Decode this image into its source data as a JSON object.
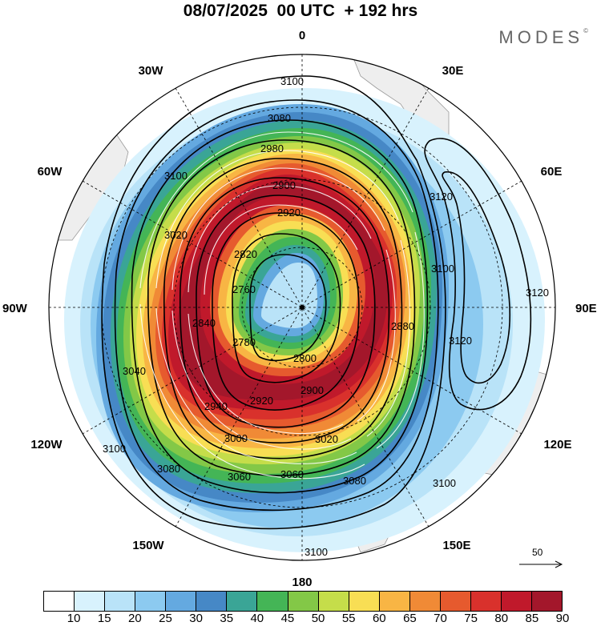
{
  "header": {
    "title": "08/07/2025  00 UTC  + 192 hrs",
    "logo": "MODES",
    "logo_mark": "©"
  },
  "map": {
    "projection": "south-polar-stereographic",
    "longitude_labels": [
      "0",
      "30E",
      "60E",
      "90E",
      "120E",
      "150E",
      "180",
      "150W",
      "120W",
      "90W",
      "60W",
      "30W"
    ],
    "contour_labels": [
      "3100",
      "3080",
      "2980",
      "2900",
      "2920",
      "3020",
      "3100",
      "3120",
      "3120",
      "3100",
      "2820",
      "2760",
      "2840",
      "2780",
      "2800",
      "2940",
      "2920",
      "2900",
      "2880",
      "3000",
      "3020",
      "3040",
      "3060",
      "3060",
      "3080",
      "3080",
      "3100",
      "3100",
      "3120",
      "3100"
    ],
    "reference_vector_label": "50"
  },
  "colorbar": {
    "colors": [
      "#ffffff",
      "#d8f2fd",
      "#b9e3f8",
      "#8ccaf0",
      "#64a9e0",
      "#4688c6",
      "#3aa596",
      "#44b556",
      "#83c847",
      "#c5dd4a",
      "#f8de54",
      "#f8b544",
      "#f08a36",
      "#e65a2e",
      "#d9312c",
      "#c0192b",
      "#a3172b"
    ],
    "labels": [
      "10",
      "15",
      "20",
      "25",
      "30",
      "35",
      "40",
      "45",
      "50",
      "55",
      "60",
      "65",
      "70",
      "75",
      "80",
      "85",
      "90"
    ]
  }
}
